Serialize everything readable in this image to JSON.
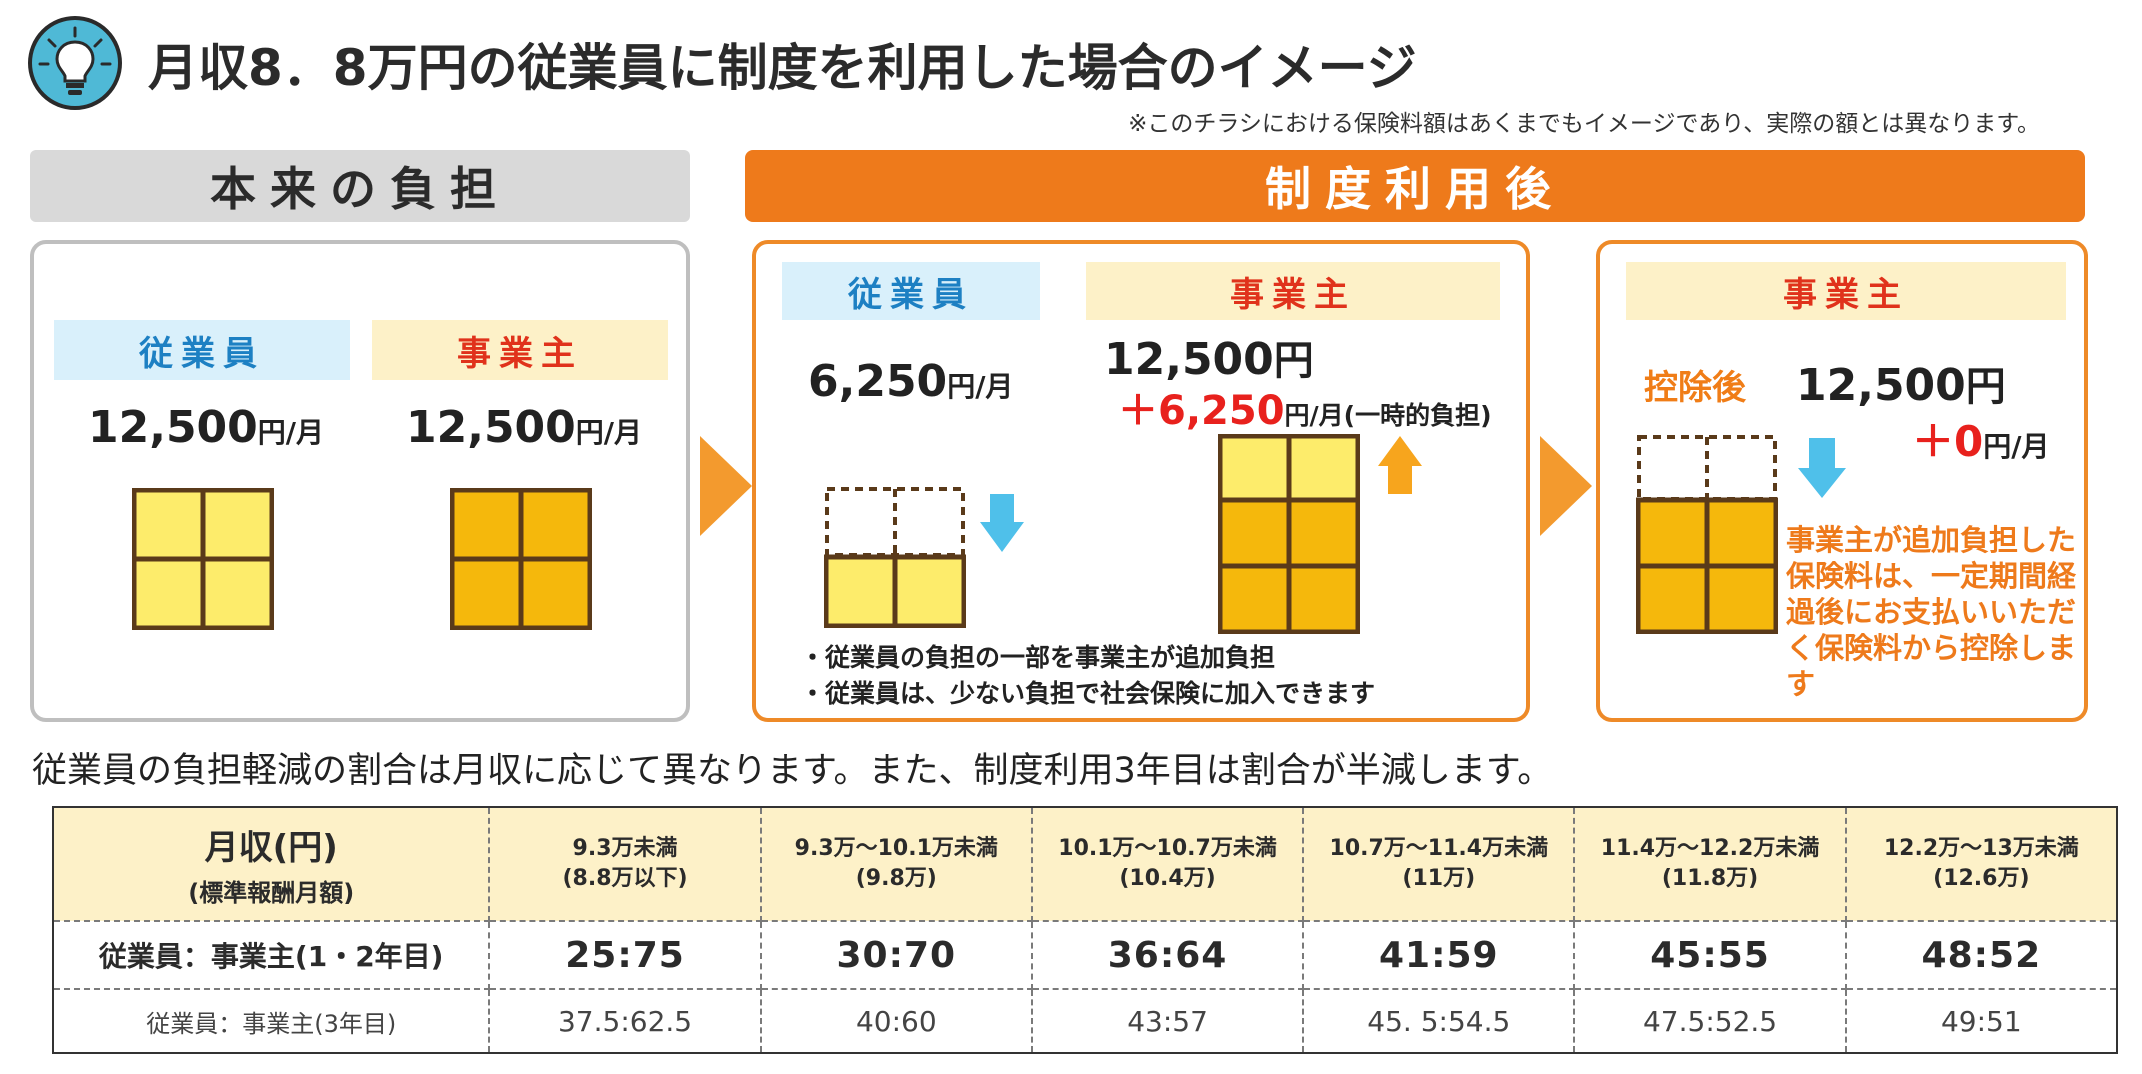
{
  "header": {
    "icon": "lightbulb-icon",
    "title": "月収8．8万円の従業員に制度を利用した場合のイメージ",
    "note": "※このチラシにおける保険料額はあくまでもイメージであり、実際の額とは異なります。"
  },
  "before": {
    "section_title": "本来の負担",
    "employee_label": "従業員",
    "employee_amount": "12,500",
    "employer_label": "事業主",
    "employer_amount": "12,500",
    "unit": "円/月"
  },
  "after": {
    "section_title": "制度利用後",
    "employee_label": "従業員",
    "employee_amount": "6,250",
    "employer_label": "事業主",
    "employer_amount": "12,500",
    "employer_add": "＋6,250",
    "employer_add_suffix": "円/月(一時的負担)",
    "unit_plain": "円",
    "unit": "円/月",
    "bullets": [
      "・従業員の負担の一部を事業主が追加負担",
      "・従業員は、少ない負担で社会保険に加入できます"
    ],
    "later": {
      "employer_label": "事業主",
      "deduction_label": "控除後",
      "amount": "12,500",
      "add": "＋0",
      "note": "事業主が追加負担した保険料は、一定期間経過後にお支払いいただく保険料から控除します"
    }
  },
  "summary": "従業員の負担軽減の割合は月収に応じて異なります。また、制度利用3年目は割合が半減します。",
  "table": {
    "header_main": "月収(円)",
    "header_sub": "(標準報酬月額)",
    "columns": [
      {
        "range": "9.3万未満",
        "standard": "(8.8万以下)"
      },
      {
        "range": "9.3万～10.1万未満",
        "standard": "(9.8万)"
      },
      {
        "range": "10.1万～10.7万未満",
        "standard": "(10.4万)"
      },
      {
        "range": "10.7万～11.4万未満",
        "standard": "(11万)"
      },
      {
        "range": "11.4万～12.2万未満",
        "standard": "(11.8万)"
      },
      {
        "range": "12.2万～13万未満",
        "standard": "(12.6万)"
      }
    ],
    "row1_label": "従業員：事業主(1・2年目)",
    "row1": [
      "25:75",
      "30:70",
      "36:64",
      "41:59",
      "45:55",
      "48:52"
    ],
    "row2_label": "従業員：事業主(3年目)",
    "row2": [
      "37.5:62.5",
      "40:60",
      "43:57",
      "45. 5:54.5",
      "47.5:52.5",
      "49:51"
    ]
  },
  "colors": {
    "accent_orange": "#ee7a1b",
    "label_blue": "#1d80c3",
    "label_red": "#e0321b",
    "cell_light_yellow": "#fdec6b",
    "cell_dark_yellow": "#f5b80c",
    "frame_brown": "#5a3a1a",
    "down_arrow": "#4fc0ea",
    "up_arrow": "#f7a51d"
  }
}
